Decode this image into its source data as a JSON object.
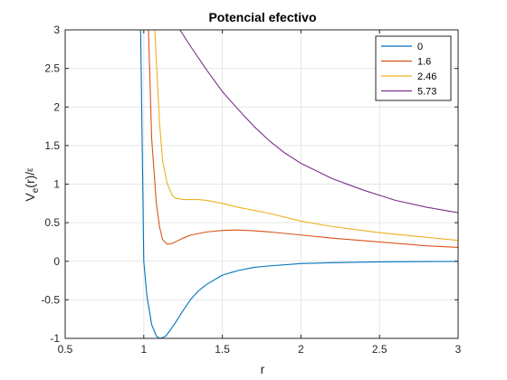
{
  "chart_data": {
    "type": "line",
    "title": "Potencial efectivo",
    "xlabel": "r",
    "ylabel": {
      "main": "V",
      "sub": "e",
      "paren": "(r)/",
      "eps": "ε"
    },
    "xlim": [
      0.5,
      3
    ],
    "ylim": [
      -1,
      3
    ],
    "xticks": [
      0.5,
      1,
      1.5,
      2,
      2.5,
      3
    ],
    "xtick_labels": [
      "0.5",
      "1",
      "1.5",
      "2",
      "2.5",
      "3"
    ],
    "yticks": [
      -1,
      -0.5,
      0,
      0.5,
      1,
      1.5,
      2,
      2.5,
      3
    ],
    "ytick_labels": [
      "-1",
      "-0.5",
      "0",
      "0.5",
      "1",
      "1.5",
      "2",
      "2.5",
      "3"
    ],
    "grid": true,
    "legend_position": "top-right",
    "series": [
      {
        "name": "0",
        "color": "#0072BD",
        "x": [
          0.98,
          1.0,
          1.02,
          1.05,
          1.08,
          1.1,
          1.12,
          1.14,
          1.17,
          1.2,
          1.25,
          1.3,
          1.35,
          1.4,
          1.5,
          1.6,
          1.7,
          1.8,
          2.0,
          2.2,
          2.5,
          2.8,
          3.0
        ],
        "y": [
          3.0,
          0.0,
          -0.45,
          -0.82,
          -0.97,
          -1.0,
          -0.99,
          -0.97,
          -0.89,
          -0.8,
          -0.64,
          -0.49,
          -0.38,
          -0.3,
          -0.18,
          -0.12,
          -0.08,
          -0.06,
          -0.03,
          -0.018,
          -0.008,
          -0.004,
          -0.003
        ]
      },
      {
        "name": "1.6",
        "color": "#D95319",
        "x": [
          1.03,
          1.05,
          1.08,
          1.1,
          1.12,
          1.15,
          1.18,
          1.2,
          1.25,
          1.3,
          1.4,
          1.5,
          1.6,
          1.7,
          1.8,
          2.0,
          2.2,
          2.5,
          2.8,
          3.0
        ],
        "y": [
          3.0,
          1.6,
          0.75,
          0.45,
          0.28,
          0.22,
          0.23,
          0.25,
          0.3,
          0.34,
          0.38,
          0.4,
          0.405,
          0.395,
          0.38,
          0.34,
          0.3,
          0.25,
          0.2,
          0.18
        ]
      },
      {
        "name": "2.46",
        "color": "#EDB120",
        "x": [
          1.07,
          1.1,
          1.12,
          1.15,
          1.18,
          1.2,
          1.25,
          1.3,
          1.35,
          1.4,
          1.5,
          1.6,
          1.8,
          2.0,
          2.2,
          2.5,
          2.8,
          3.0
        ],
        "y": [
          3.0,
          1.8,
          1.3,
          1.0,
          0.86,
          0.82,
          0.8,
          0.8,
          0.8,
          0.79,
          0.75,
          0.7,
          0.62,
          0.52,
          0.45,
          0.37,
          0.31,
          0.27
        ]
      },
      {
        "name": "5.73",
        "color": "#7E2F8E",
        "x": [
          1.23,
          1.3,
          1.4,
          1.5,
          1.6,
          1.7,
          1.8,
          1.9,
          2.0,
          2.2,
          2.4,
          2.6,
          2.8,
          3.0
        ],
        "y": [
          3.0,
          2.78,
          2.48,
          2.2,
          1.97,
          1.75,
          1.56,
          1.4,
          1.27,
          1.07,
          0.92,
          0.79,
          0.7,
          0.63
        ]
      }
    ]
  }
}
